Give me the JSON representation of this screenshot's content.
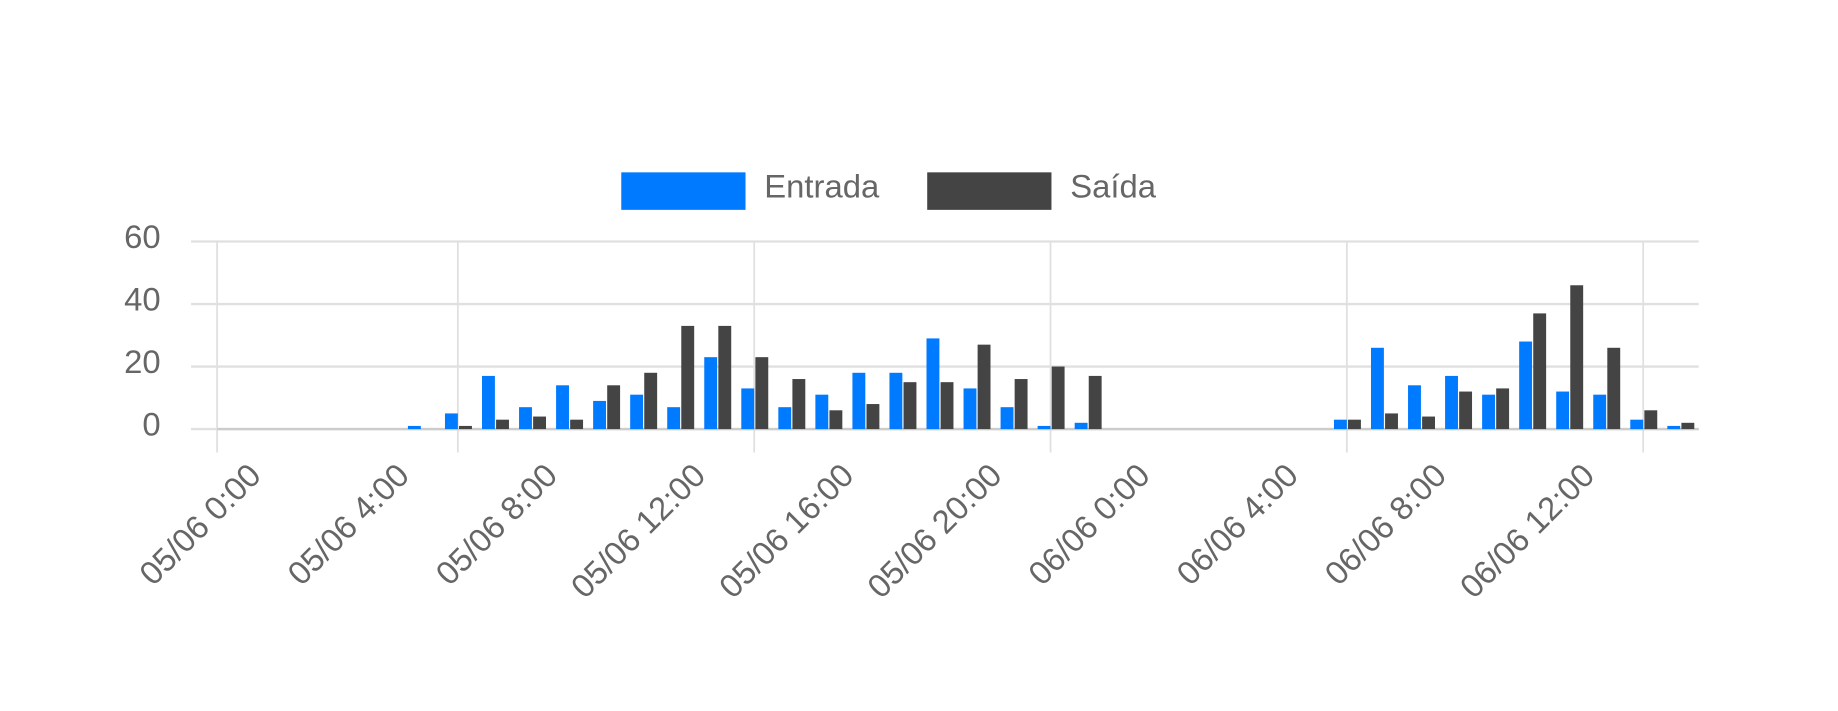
{
  "chart_data": {
    "type": "bar",
    "categories": [
      "05/06 0:00",
      null,
      null,
      null,
      "05/06 4:00",
      null,
      null,
      null,
      "05/06 8:00",
      null,
      null,
      null,
      "05/06 12:00",
      null,
      null,
      null,
      "05/06 16:00",
      null,
      null,
      null,
      "05/06 20:00",
      null,
      null,
      null,
      "06/06 0:00",
      null,
      null,
      null,
      "06/06 4:00",
      null,
      null,
      null,
      "06/06 8:00",
      null,
      null,
      null,
      "06/06 12:00",
      null,
      null,
      null
    ],
    "series": [
      {
        "name": "Entrada",
        "color": "#007bff",
        "values": [
          0,
          0,
          0,
          0,
          0,
          1,
          5,
          17,
          7,
          14,
          9,
          11,
          7,
          23,
          13,
          7,
          11,
          18,
          18,
          29,
          13,
          7,
          1,
          2,
          0,
          0,
          0,
          0,
          0,
          0,
          3,
          26,
          14,
          17,
          11,
          28,
          12,
          11,
          3,
          1
        ]
      },
      {
        "name": "Saída",
        "color": "#444444",
        "values": [
          0,
          0,
          0,
          0,
          0,
          0,
          1,
          3,
          4,
          3,
          14,
          18,
          33,
          33,
          23,
          16,
          6,
          8,
          15,
          15,
          27,
          16,
          20,
          17,
          0,
          0,
          0,
          0,
          0,
          0,
          3,
          5,
          4,
          12,
          13,
          37,
          46,
          26,
          6,
          2
        ]
      }
    ],
    "ylim": [
      0,
      60
    ],
    "yticks": [
      0,
      20,
      40,
      60
    ],
    "grid": true,
    "legend": "top"
  }
}
